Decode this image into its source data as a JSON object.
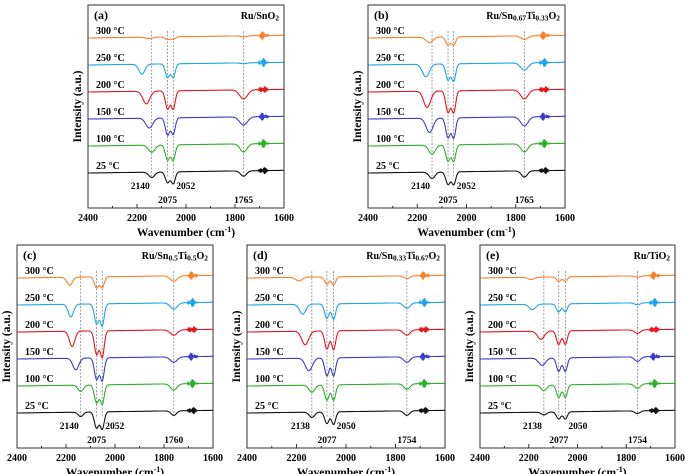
{
  "chart_data": {
    "type": "line",
    "xlabel": "Wavenumber (cm-1)",
    "xlabel_parts": [
      "Wavenumber (cm",
      "-1",
      ")"
    ],
    "ylabel": "Intensity (a.u.)",
    "xlim": [
      2400,
      1600
    ],
    "x_reversed": true,
    "xticks": [
      2400,
      2200,
      2000,
      1800,
      1600
    ],
    "grid": false,
    "series_colors": [
      "#ff7f27",
      "#1ea5e8",
      "#e8141e",
      "#3c3ccc",
      "#2ab02a",
      "#111111"
    ],
    "panels": [
      {
        "label": "(a)",
        "title": "Ru/SnO2",
        "title_parts": [
          [
            "Ru/SnO",
            false
          ],
          [
            "2",
            true
          ]
        ],
        "annotations": [
          2140,
          2075,
          2052,
          1765
        ],
        "series": [
          {
            "name": "300 °C",
            "bands": [
              [
                2150,
                0.08,
                14
              ],
              [
                2075,
                0.15,
                10
              ],
              [
                2052,
                0.12,
                9
              ],
              [
                1765,
                0.05,
                12
              ]
            ]
          },
          {
            "name": "250 °C",
            "bands": [
              [
                2180,
                0.55,
                12
              ],
              [
                2075,
                0.75,
                9
              ],
              [
                2052,
                0.75,
                8
              ],
              [
                1765,
                0.05,
                12
              ]
            ]
          },
          {
            "name": "200 °C",
            "bands": [
              [
                2162,
                0.7,
                14
              ],
              [
                2075,
                1.0,
                9
              ],
              [
                2052,
                1.0,
                8
              ],
              [
                1765,
                0.5,
                16
              ]
            ]
          },
          {
            "name": "150 °C",
            "bands": [
              [
                2150,
                0.55,
                14
              ],
              [
                2075,
                0.95,
                9
              ],
              [
                2052,
                0.9,
                8
              ],
              [
                1765,
                0.45,
                16
              ]
            ]
          },
          {
            "name": "100 °C",
            "bands": [
              [
                2140,
                0.4,
                13
              ],
              [
                2075,
                0.85,
                9
              ],
              [
                2052,
                0.85,
                8
              ],
              [
                1765,
                0.45,
                14
              ]
            ]
          },
          {
            "name": "25 °C",
            "bands": [
              [
                2140,
                0.3,
                12
              ],
              [
                2075,
                0.6,
                9
              ],
              [
                2052,
                0.65,
                8
              ],
              [
                1765,
                0.3,
                12
              ]
            ]
          }
        ]
      },
      {
        "label": "(b)",
        "title": "Ru/Sn0.67Ti0.33O2",
        "title_parts": [
          [
            "Ru/Sn",
            false
          ],
          [
            "0.67",
            true
          ],
          [
            "Ti",
            false
          ],
          [
            "0.33",
            true
          ],
          [
            "O",
            false
          ],
          [
            "2",
            true
          ]
        ],
        "annotations": [
          2140,
          2075,
          2052,
          1765
        ],
        "series": [
          {
            "name": "300 °C",
            "bands": [
              [
                2150,
                0.3,
                14
              ],
              [
                2075,
                0.45,
                9
              ],
              [
                2052,
                0.45,
                8
              ],
              [
                1765,
                0.2,
                14
              ]
            ]
          },
          {
            "name": "250 °C",
            "bands": [
              [
                2165,
                0.7,
                14
              ],
              [
                2075,
                0.9,
                9
              ],
              [
                2052,
                0.95,
                8
              ],
              [
                1765,
                0.4,
                15
              ]
            ]
          },
          {
            "name": "200 °C",
            "bands": [
              [
                2160,
                0.9,
                14
              ],
              [
                2075,
                1.2,
                9
              ],
              [
                2052,
                1.2,
                8
              ],
              [
                1765,
                0.5,
                15
              ]
            ]
          },
          {
            "name": "150 °C",
            "bands": [
              [
                2150,
                0.8,
                14
              ],
              [
                2075,
                1.1,
                9
              ],
              [
                2052,
                1.1,
                8
              ],
              [
                1765,
                0.5,
                15
              ]
            ]
          },
          {
            "name": "100 °C",
            "bands": [
              [
                2140,
                0.5,
                13
              ],
              [
                2075,
                0.9,
                9
              ],
              [
                2052,
                0.9,
                8
              ],
              [
                1765,
                0.45,
                14
              ]
            ]
          },
          {
            "name": "25 °C",
            "bands": [
              [
                2140,
                0.35,
                12
              ],
              [
                2075,
                0.7,
                9
              ],
              [
                2052,
                0.7,
                8
              ],
              [
                1765,
                0.35,
                12
              ]
            ]
          }
        ]
      },
      {
        "label": "(c)",
        "title": "Ru/Sn0.5Ti0.5O2",
        "title_parts": [
          [
            "Ru/Sn",
            false
          ],
          [
            "0.5",
            true
          ],
          [
            "Ti",
            false
          ],
          [
            "0.5",
            true
          ],
          [
            "O",
            false
          ],
          [
            "2",
            true
          ]
        ],
        "annotations": [
          2140,
          2075,
          2052,
          1760
        ],
        "series": [
          {
            "name": "300 °C",
            "bands": [
              [
                2185,
                0.45,
                11
              ],
              [
                2075,
                0.6,
                9
              ],
              [
                2052,
                0.6,
                8
              ],
              [
                1760,
                0.3,
                14
              ]
            ]
          },
          {
            "name": "250 °C",
            "bands": [
              [
                2180,
                0.7,
                11
              ],
              [
                2075,
                1.1,
                9
              ],
              [
                2052,
                1.2,
                8
              ],
              [
                1760,
                0.35,
                14
              ]
            ]
          },
          {
            "name": "200 °C",
            "bands": [
              [
                2175,
                0.85,
                11
              ],
              [
                2075,
                1.3,
                9
              ],
              [
                2052,
                1.45,
                8
              ],
              [
                1760,
                0.3,
                14
              ]
            ]
          },
          {
            "name": "150 °C",
            "bands": [
              [
                2160,
                0.65,
                12
              ],
              [
                2075,
                1.2,
                9
              ],
              [
                2052,
                1.25,
                8
              ],
              [
                1760,
                0.3,
                14
              ]
            ]
          },
          {
            "name": "100 °C",
            "bands": [
              [
                2140,
                0.35,
                11
              ],
              [
                2075,
                1.0,
                9
              ],
              [
                2052,
                1.05,
                8
              ],
              [
                1760,
                0.35,
                13
              ]
            ]
          },
          {
            "name": "25 °C",
            "bands": [
              [
                2140,
                0.25,
                10
              ],
              [
                2075,
                0.9,
                9
              ],
              [
                2052,
                0.95,
                8
              ],
              [
                1760,
                0.25,
                11
              ]
            ]
          }
        ]
      },
      {
        "label": "(d)",
        "title": "Ru/Sn0.33Ti0.67O2",
        "title_parts": [
          [
            "Ru/Sn",
            false
          ],
          [
            "0.33",
            true
          ],
          [
            "Ti",
            false
          ],
          [
            "0.67",
            true
          ],
          [
            "O",
            false
          ],
          [
            "2",
            true
          ]
        ],
        "annotations": [
          2138,
          2077,
          2050,
          1754
        ],
        "series": [
          {
            "name": "300 °C",
            "bands": [
              [
                2190,
                0.2,
                13
              ],
              [
                2077,
                0.4,
                9
              ],
              [
                2050,
                0.45,
                8
              ],
              [
                1754,
                0.15,
                12
              ]
            ]
          },
          {
            "name": "250 °C",
            "bands": [
              [
                2175,
                0.55,
                13
              ],
              [
                2077,
                0.8,
                9
              ],
              [
                2050,
                0.85,
                8
              ],
              [
                1754,
                0.3,
                13
              ]
            ]
          },
          {
            "name": "200 °C",
            "bands": [
              [
                2165,
                0.75,
                14
              ],
              [
                2077,
                1.0,
                9
              ],
              [
                2050,
                1.05,
                8
              ],
              [
                1754,
                0.3,
                13
              ]
            ]
          },
          {
            "name": "150 °C",
            "bands": [
              [
                2150,
                0.7,
                14
              ],
              [
                2077,
                1.0,
                9
              ],
              [
                2050,
                1.0,
                8
              ],
              [
                1754,
                0.3,
                13
              ]
            ]
          },
          {
            "name": "100 °C",
            "bands": [
              [
                2138,
                0.4,
                12
              ],
              [
                2077,
                0.85,
                9
              ],
              [
                2050,
                0.85,
                8
              ],
              [
                1754,
                0.3,
                12
              ]
            ]
          },
          {
            "name": "25 °C",
            "bands": [
              [
                2138,
                0.3,
                11
              ],
              [
                2077,
                0.65,
                9
              ],
              [
                2050,
                0.7,
                8
              ],
              [
                1754,
                0.25,
                11
              ]
            ]
          }
        ]
      },
      {
        "label": "(e)",
        "title": "Ru/TiO2",
        "title_parts": [
          [
            "Ru/TiO",
            false
          ],
          [
            "2",
            true
          ]
        ],
        "annotations": [
          2138,
          2077,
          2050,
          1754
        ],
        "series": [
          {
            "name": "300 °C",
            "bands": [
              [
                2190,
                0.12,
                13
              ],
              [
                2077,
                0.25,
                9
              ],
              [
                2050,
                0.25,
                8
              ],
              [
                1754,
                0.08,
                12
              ]
            ]
          },
          {
            "name": "250 °C",
            "bands": [
              [
                2185,
                0.3,
                13
              ],
              [
                2077,
                0.45,
                9
              ],
              [
                2050,
                0.45,
                8
              ],
              [
                1754,
                0.1,
                12
              ]
            ]
          },
          {
            "name": "200 °C",
            "bands": [
              [
                2150,
                0.45,
                14
              ],
              [
                2077,
                0.75,
                9
              ],
              [
                2050,
                0.75,
                8
              ],
              [
                1754,
                0.2,
                12
              ]
            ]
          },
          {
            "name": "150 °C",
            "bands": [
              [
                2145,
                0.4,
                14
              ],
              [
                2077,
                0.75,
                9
              ],
              [
                2050,
                0.75,
                8
              ],
              [
                1754,
                0.25,
                12
              ]
            ]
          },
          {
            "name": "100 °C",
            "bands": [
              [
                2138,
                0.3,
                12
              ],
              [
                2077,
                0.7,
                9
              ],
              [
                2050,
                0.7,
                8
              ],
              [
                1754,
                0.25,
                12
              ]
            ]
          },
          {
            "name": "25 °C",
            "bands": [
              [
                2138,
                0.15,
                11
              ],
              [
                2077,
                0.4,
                9
              ],
              [
                2050,
                0.4,
                8
              ],
              [
                1754,
                0.15,
                11
              ]
            ]
          }
        ]
      }
    ]
  }
}
